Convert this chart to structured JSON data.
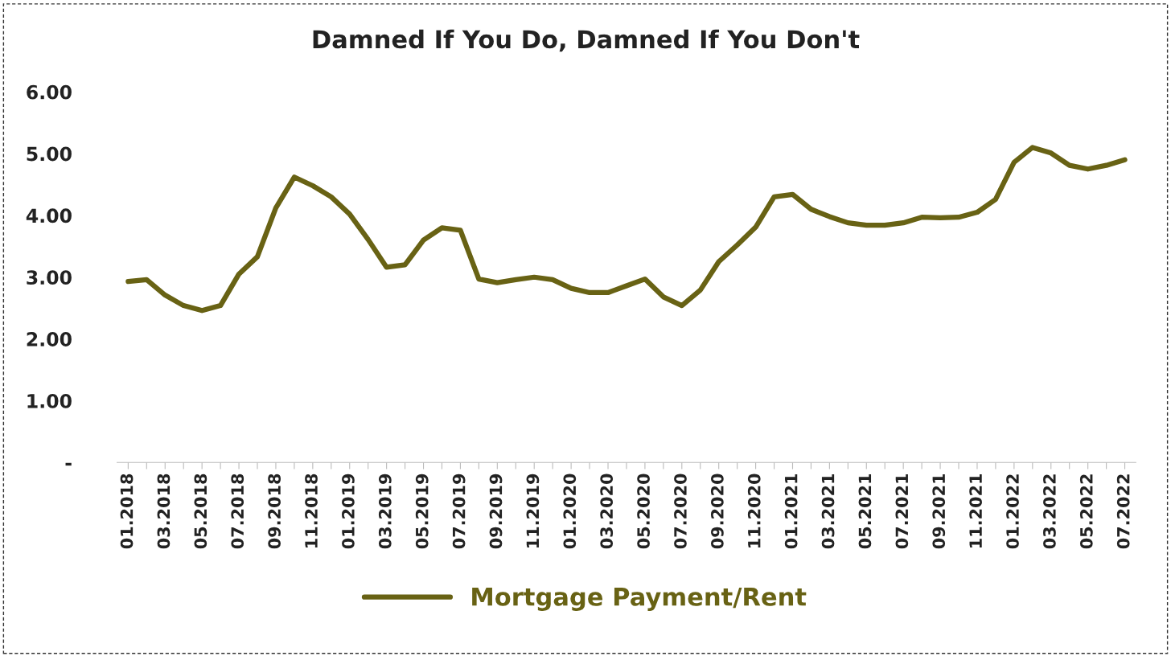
{
  "chart_data": {
    "type": "line",
    "title": "Damned If You Do, Damned If You Don't",
    "categories": [
      "01.2018",
      null,
      "03.2018",
      null,
      "05.2018",
      null,
      "07.2018",
      null,
      "09.2018",
      null,
      "11.2018",
      null,
      "01.2019",
      null,
      "03.2019",
      null,
      "05.2019",
      null,
      "07.2019",
      null,
      "09.2019",
      null,
      "11.2019",
      null,
      "01.2020",
      null,
      "03.2020",
      null,
      "05.2020",
      null,
      "07.2020",
      null,
      "09.2020",
      null,
      "11.2020",
      null,
      "01.2021",
      null,
      "03.2021",
      null,
      "05.2021",
      null,
      "07.2021",
      null,
      "09.2021",
      null,
      "11.2021",
      null,
      "01.2022",
      null,
      "03.2022",
      null,
      "05.2022",
      null,
      "07.2022"
    ],
    "series": [
      {
        "name": "Mortgage Payment/Rent",
        "color": "#686214",
        "values": [
          2.93,
          2.96,
          2.71,
          2.54,
          2.46,
          2.54,
          3.05,
          3.33,
          4.12,
          4.62,
          4.48,
          4.3,
          4.02,
          3.61,
          3.16,
          3.2,
          3.6,
          3.8,
          3.76,
          2.97,
          2.91,
          2.96,
          3.0,
          2.96,
          2.82,
          2.75,
          2.75,
          2.86,
          2.97,
          2.68,
          2.54,
          2.79,
          3.25,
          3.52,
          3.81,
          4.3,
          4.34,
          4.1,
          3.98,
          3.88,
          3.84,
          3.84,
          3.88,
          3.97,
          3.96,
          3.97,
          4.05,
          4.26,
          4.86,
          5.1,
          5.01,
          4.81,
          4.75,
          4.81,
          4.9
        ]
      }
    ],
    "ylim": [
      0,
      6
    ],
    "yticks": [
      {
        "value": 0,
        "label": "-"
      },
      {
        "value": 1,
        "label": "1.00"
      },
      {
        "value": 2,
        "label": "2.00"
      },
      {
        "value": 3,
        "label": "3.00"
      },
      {
        "value": 4,
        "label": "4.00"
      },
      {
        "value": 5,
        "label": "5.00"
      },
      {
        "value": 6,
        "label": "6.00"
      }
    ],
    "grid": false,
    "legend": "bottom",
    "marker": "none",
    "line_style": "solid"
  }
}
